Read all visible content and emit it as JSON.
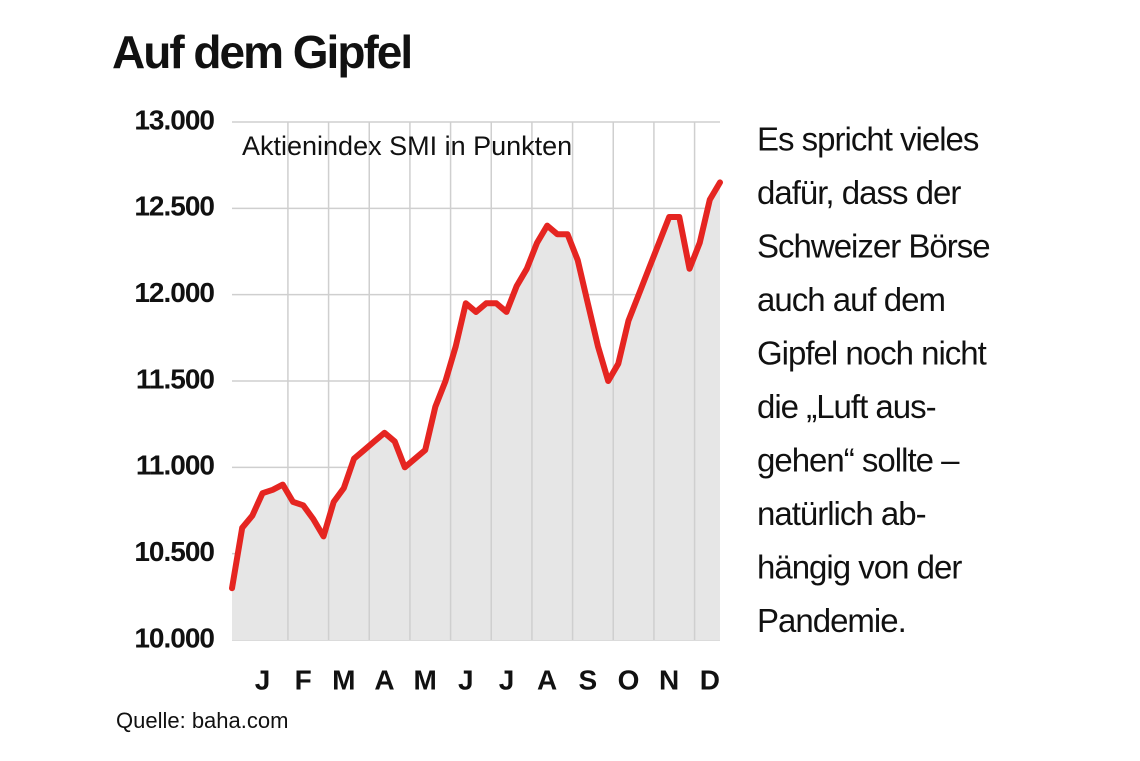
{
  "chart_data": {
    "type": "line",
    "title": "Auf dem Gipfel",
    "subtitle": "Aktienindex SMI in Punkten",
    "source": "Quelle: baha.com",
    "annotation": [
      "Es spricht vieles",
      "dafür, dass der",
      "Schweizer Börse",
      "auch auf dem",
      "Gipfel noch nicht",
      "die „Luft aus-",
      "gehen“ sollte –",
      "natürlich ab-",
      "hängig von der",
      "Pandemie."
    ],
    "categories": [
      null,
      null,
      null,
      "J",
      null,
      null,
      null,
      "F",
      null,
      null,
      null,
      "M",
      null,
      null,
      null,
      "A",
      null,
      null,
      null,
      "M",
      null,
      null,
      null,
      "J",
      null,
      null,
      null,
      "J",
      null,
      null,
      null,
      "A",
      null,
      null,
      null,
      "S",
      null,
      null,
      null,
      "O",
      null,
      null,
      null,
      "N",
      null,
      null,
      null,
      "D",
      null
    ],
    "series": [
      {
        "name": "SMI",
        "color": "#e52521",
        "values": [
          10300,
          10650,
          10720,
          10850,
          10870,
          10900,
          10800,
          10780,
          10700,
          10600,
          10800,
          10880,
          11050,
          11100,
          11150,
          11200,
          11150,
          11000,
          11050,
          11100,
          11350,
          11500,
          11700,
          11950,
          11900,
          11950,
          11950,
          11900,
          12050,
          12150,
          12300,
          12400,
          12350,
          12350,
          12200,
          11950,
          11700,
          11500,
          11600,
          11850,
          12000,
          12150,
          12300,
          12450,
          12450,
          12150,
          12300,
          12550,
          12650
        ]
      }
    ],
    "area_color": "#e6e6e6",
    "ylim": [
      10000,
      13000
    ],
    "yticks": [
      {
        "value": 10000,
        "label": "10.000"
      },
      {
        "value": 10500,
        "label": "10.500"
      },
      {
        "value": 11000,
        "label": "11.000"
      },
      {
        "value": 11500,
        "label": "11.500"
      },
      {
        "value": 12000,
        "label": "12.000"
      },
      {
        "value": 12500,
        "label": "12.500"
      },
      {
        "value": 13000,
        "label": "13.000"
      }
    ],
    "grid": true
  }
}
